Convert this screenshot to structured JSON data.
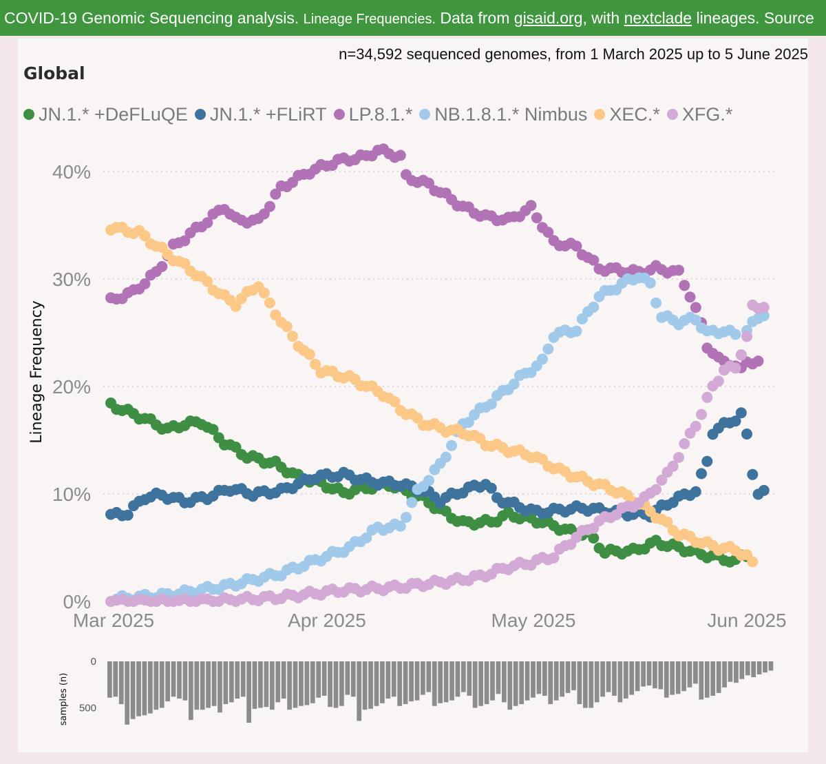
{
  "banner": {
    "part1": "COVID-19 Genomic Sequencing analysis. ",
    "part2": "Lineage Frequencies.",
    "part3": " Data from ",
    "link1": "gisaid.org",
    "part4": ", with ",
    "link2": "nextclade",
    "part5": " lineages. Source"
  },
  "subtitle": "n=34,592 sequenced genomes, from 1 March 2025 up to 5 June 2025",
  "region": "Global",
  "colors": {
    "banner": "#3f963e",
    "JN1_DeFLuQE": "#3e8f44",
    "JN1_FLiRT": "#3d739d",
    "LP81": "#b173b6",
    "NB181": "#a1c9ea",
    "XEC": "#fbc887",
    "XFG": "#d3a9d6",
    "samples_bar": "#8c8c8c"
  },
  "chart_data": [
    {
      "type": "scatter",
      "xlabel": "",
      "ylabel": "Lineage Frequency",
      "x_ticks": [
        "Mar 2025",
        "Apr 2025",
        "May 2025",
        "Jun 2025"
      ],
      "x_start": "2025-02-28",
      "x_end": "2025-06-05",
      "y_ticks": [
        "0%",
        "10%",
        "20%",
        "30%",
        "40%"
      ],
      "ylim": [
        0,
        45
      ],
      "grid": "horizontal dotted",
      "legend": "top",
      "series": [
        {
          "name": "JN.1.* +DeFLuQE",
          "color": "#3e8f44",
          "points": [
            [
              0,
              18.3
            ],
            [
              6,
              17
            ],
            [
              10,
              16
            ],
            [
              13,
              16.5
            ],
            [
              16,
              16.7
            ],
            [
              20,
              14.8
            ],
            [
              24,
              13.5
            ],
            [
              29,
              12.8
            ],
            [
              33,
              11.6
            ],
            [
              37,
              11
            ],
            [
              41,
              10.1
            ],
            [
              44,
              10.5
            ],
            [
              49,
              10.9
            ],
            [
              55,
              9.6
            ],
            [
              58,
              8.5
            ],
            [
              62,
              7.3
            ],
            [
              67,
              7.4
            ],
            [
              70,
              8.1
            ],
            [
              76,
              7.4
            ],
            [
              81,
              6.5
            ],
            [
              84,
              6.3
            ],
            [
              87,
              4.6
            ],
            [
              92,
              4.7
            ],
            [
              96,
              5.5
            ],
            [
              100,
              5
            ],
            [
              104,
              4.4
            ],
            [
              107,
              4.1
            ],
            [
              110,
              3.7
            ],
            [
              111,
              4.2
            ],
            [
              112,
              4.4
            ]
          ]
        },
        {
          "name": "JN.1.* +FLiRT",
          "color": "#3d739d",
          "points": [
            [
              0,
              8
            ],
            [
              3,
              8.2
            ],
            [
              6,
              9.7
            ],
            [
              9,
              9.9
            ],
            [
              13,
              9.3
            ],
            [
              17,
              9.7
            ],
            [
              21,
              10.5
            ],
            [
              25,
              10
            ],
            [
              30,
              10.3
            ],
            [
              36,
              11.6
            ],
            [
              41,
              11.8
            ],
            [
              46,
              11.1
            ],
            [
              51,
              10.9
            ],
            [
              55,
              10.3
            ],
            [
              58,
              9.4
            ],
            [
              62,
              10.3
            ],
            [
              66,
              11
            ],
            [
              68,
              9.6
            ],
            [
              72,
              8.8
            ],
            [
              75,
              8.3
            ],
            [
              79,
              8.5
            ],
            [
              83,
              8.7
            ],
            [
              86,
              8.5
            ],
            [
              90,
              8.2
            ],
            [
              95,
              8.1
            ],
            [
              99,
              9.4
            ],
            [
              103,
              10.3
            ],
            [
              105,
              13
            ],
            [
              106,
              15.8
            ],
            [
              110,
              17
            ],
            [
              111,
              17.4
            ],
            [
              112,
              15.4
            ],
            [
              113,
              12
            ],
            [
              114,
              10.1
            ],
            [
              115,
              10.1
            ]
          ]
        },
        {
          "name": "LP.8.1.*",
          "color": "#b173b6",
          "points": [
            [
              0,
              28
            ],
            [
              4,
              28.8
            ],
            [
              8,
              30.6
            ],
            [
              11,
              33
            ],
            [
              16,
              35
            ],
            [
              20,
              36.7
            ],
            [
              22,
              35.5
            ],
            [
              26,
              35.4
            ],
            [
              30,
              38.5
            ],
            [
              35,
              40
            ],
            [
              40,
              41
            ],
            [
              45,
              41.4
            ],
            [
              47,
              42
            ],
            [
              51,
              41.4
            ],
            [
              52,
              39.5
            ],
            [
              56,
              38.8
            ],
            [
              62,
              36.7
            ],
            [
              66,
              35.8
            ],
            [
              70,
              35.5
            ],
            [
              74,
              36.6
            ],
            [
              78,
              33.4
            ],
            [
              82,
              33
            ],
            [
              86,
              31
            ],
            [
              90,
              30.8
            ],
            [
              93,
              30.6
            ],
            [
              96,
              31
            ],
            [
              100,
              30.6
            ],
            [
              102,
              28.5
            ],
            [
              104,
              25.8
            ],
            [
              105,
              23.8
            ],
            [
              107,
              22.5
            ],
            [
              109,
              22.2
            ],
            [
              111,
              21.5
            ],
            [
              112,
              22.4
            ],
            [
              114,
              22.2
            ]
          ]
        },
        {
          "name": "NB.1.8.1.* Nimbus",
          "color": "#a1c9ea",
          "points": [
            [
              0,
              0.2
            ],
            [
              10,
              0.6
            ],
            [
              20,
              1.4
            ],
            [
              30,
              2.6
            ],
            [
              36,
              3.8
            ],
            [
              42,
              5
            ],
            [
              47,
              6.8
            ],
            [
              51,
              7
            ],
            [
              54,
              10.2
            ],
            [
              58,
              12.7
            ],
            [
              62,
              16.5
            ],
            [
              68,
              19
            ],
            [
              72,
              20.8
            ],
            [
              76,
              22.3
            ],
            [
              78,
              24.8
            ],
            [
              82,
              25.3
            ],
            [
              86,
              28.4
            ],
            [
              91,
              29.8
            ],
            [
              93,
              30.3
            ],
            [
              95,
              29.5
            ],
            [
              97,
              26.5
            ],
            [
              100,
              26
            ],
            [
              103,
              26.3
            ],
            [
              105,
              25
            ],
            [
              108,
              25.2
            ],
            [
              110,
              24.8
            ],
            [
              111,
              23.2
            ],
            [
              112,
              25.2
            ],
            [
              114,
              26.4
            ],
            [
              115,
              26.8
            ]
          ]
        },
        {
          "name": "XEC.*",
          "color": "#fbc887",
          "points": [
            [
              0,
              34.8
            ],
            [
              5,
              34.3
            ],
            [
              10,
              32.3
            ],
            [
              15,
              30.5
            ],
            [
              20,
              28.3
            ],
            [
              22,
              27.7
            ],
            [
              26,
              29.5
            ],
            [
              28,
              27.6
            ],
            [
              32,
              24.6
            ],
            [
              37,
              21.5
            ],
            [
              42,
              20.8
            ],
            [
              48,
              19.3
            ],
            [
              51,
              17.9
            ],
            [
              55,
              16.6
            ],
            [
              59,
              16
            ],
            [
              63,
              15.6
            ],
            [
              66,
              14.7
            ],
            [
              70,
              14.1
            ],
            [
              74,
              13.6
            ],
            [
              79,
              12.2
            ],
            [
              84,
              11.2
            ],
            [
              88,
              10.5
            ],
            [
              92,
              9.5
            ],
            [
              96,
              8
            ],
            [
              100,
              6.3
            ],
            [
              104,
              5.5
            ],
            [
              107,
              5
            ],
            [
              110,
              4.8
            ],
            [
              112,
              4.2
            ],
            [
              113,
              3.5
            ]
          ]
        },
        {
          "name": "XFG.*",
          "color": "#d3a9d6",
          "points": [
            [
              0,
              0
            ],
            [
              10,
              0
            ],
            [
              20,
              0.1
            ],
            [
              30,
              0.4
            ],
            [
              40,
              1
            ],
            [
              50,
              1.3
            ],
            [
              60,
              1.9
            ],
            [
              65,
              2.3
            ],
            [
              70,
              3.2
            ],
            [
              74,
              3.6
            ],
            [
              78,
              4.2
            ],
            [
              82,
              6
            ],
            [
              86,
              7.4
            ],
            [
              90,
              8.5
            ],
            [
              94,
              9.5
            ],
            [
              98,
              11.8
            ],
            [
              101,
              14.5
            ],
            [
              104,
              17.5
            ],
            [
              106,
              20
            ],
            [
              108,
              21.5
            ],
            [
              110,
              21.8
            ],
            [
              112,
              24.5
            ],
            [
              113,
              27.4
            ],
            [
              115,
              27.5
            ]
          ]
        }
      ]
    },
    {
      "type": "bar",
      "xlabel": "",
      "ylabel": "samples (n)",
      "y_ticks": [
        "0",
        "500"
      ],
      "ylim": [
        0,
        750
      ],
      "values": [
        390,
        380,
        460,
        680,
        620,
        590,
        580,
        560,
        520,
        500,
        430,
        380,
        400,
        420,
        630,
        520,
        520,
        500,
        480,
        550,
        460,
        440,
        400,
        380,
        660,
        510,
        500,
        490,
        520,
        440,
        400,
        520,
        500,
        480,
        470,
        450,
        390,
        370,
        490,
        500,
        480,
        360,
        380,
        640,
        520,
        510,
        480,
        450,
        400,
        380,
        480,
        460,
        430,
        420,
        360,
        330,
        480,
        450,
        440,
        420,
        380,
        330,
        370,
        500,
        480,
        460,
        420,
        350,
        440,
        520,
        480,
        460,
        420,
        390,
        350,
        370,
        460,
        420,
        380,
        340,
        310,
        460,
        500,
        500,
        440,
        380,
        330,
        370,
        440,
        400,
        360,
        320,
        270,
        260,
        290,
        300,
        390,
        360,
        350,
        320,
        280,
        240,
        410,
        390,
        370,
        340,
        280,
        220,
        230,
        190,
        150,
        170,
        140,
        120,
        100
      ]
    }
  ]
}
